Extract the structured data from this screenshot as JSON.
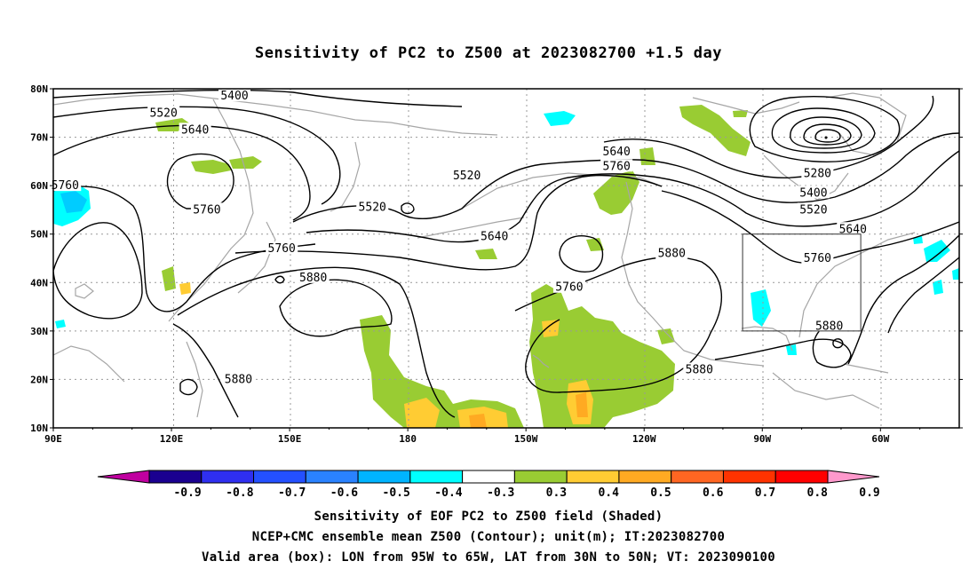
{
  "title": "Sensitivity of PC2 to Z500 at 2023082700 +1.5 day",
  "lat_labels": [
    "80N",
    "70N",
    "60N",
    "50N",
    "40N",
    "30N",
    "20N",
    "10N"
  ],
  "lon_labels": [
    "90E",
    "120E",
    "150E",
    "180",
    "150W",
    "120W",
    "90W",
    "60W"
  ],
  "contour_labels": [
    {
      "text": "5400",
      "lon": 136,
      "lat": 78.5
    },
    {
      "text": "5520",
      "lon": 118,
      "lat": 75
    },
    {
      "text": "5640",
      "lon": 126,
      "lat": 71.5
    },
    {
      "text": "5760",
      "lon": 93,
      "lat": 60
    },
    {
      "text": "5760",
      "lon": 129,
      "lat": 55
    },
    {
      "text": "5520",
      "lon": 195,
      "lat": 62
    },
    {
      "text": "5520",
      "lon": 171,
      "lat": 55.5
    },
    {
      "text": "5640",
      "lon": 233,
      "lat": 67
    },
    {
      "text": "5760",
      "lon": 233,
      "lat": 64
    },
    {
      "text": "5640",
      "lon": 202,
      "lat": 49.5
    },
    {
      "text": "5760",
      "lon": 148,
      "lat": 47
    },
    {
      "text": "5880",
      "lon": 156,
      "lat": 41
    },
    {
      "text": "5760",
      "lon": 221,
      "lat": 39
    },
    {
      "text": "5880",
      "lon": 247,
      "lat": 46
    },
    {
      "text": "5880",
      "lon": 254,
      "lat": 22
    },
    {
      "text": "5880",
      "lon": 137,
      "lat": 20
    },
    {
      "text": "5280",
      "lon": 284,
      "lat": 62.5
    },
    {
      "text": "5400",
      "lon": 283,
      "lat": 58.5
    },
    {
      "text": "5520",
      "lon": 283,
      "lat": 55
    },
    {
      "text": "5640",
      "lon": 293,
      "lat": 51
    },
    {
      "text": "5760",
      "lon": 284,
      "lat": 45
    },
    {
      "text": "5880",
      "lon": 287,
      "lat": 31
    }
  ],
  "colorbar": {
    "labels": [
      "-0.9",
      "-0.8",
      "-0.7",
      "-0.6",
      "-0.5",
      "-0.4",
      "-0.3",
      "0.3",
      "0.4",
      "0.5",
      "0.6",
      "0.7",
      "0.8",
      "0.9"
    ],
    "colors": [
      "#1a0090",
      "#2f2ff0",
      "#2450ff",
      "#2a82ff",
      "#00b4ff",
      "#00ffff",
      "#ffffff",
      "#99cc33",
      "#ffcc33",
      "#ffaa22",
      "#ff6622",
      "#ff3300",
      "#ff0000"
    ],
    "low_end_color": "#c000a0",
    "high_end_color": "#ff99cc"
  },
  "footer": {
    "line1": "Sensitivity of EOF PC2 to Z500 field (Shaded)",
    "line2": "NCEP+CMC ensemble mean Z500 (Contour); unit(m); IT:2023082700",
    "line3": "Valid area (box): LON from 95W to 65W, LAT from 30N to 50N; VT: 2023090100"
  },
  "valid_box": {
    "lon_west": 265,
    "lon_east": 295,
    "lat_south": 30,
    "lat_north": 50
  },
  "colors": {
    "contour": "#000000",
    "coast": "#a6a6a6",
    "green": "#99cc33",
    "yellow": "#ffcc33",
    "orange": "#ffaa22",
    "cyan": "#00ffff",
    "lightblue": "#00ccff"
  }
}
